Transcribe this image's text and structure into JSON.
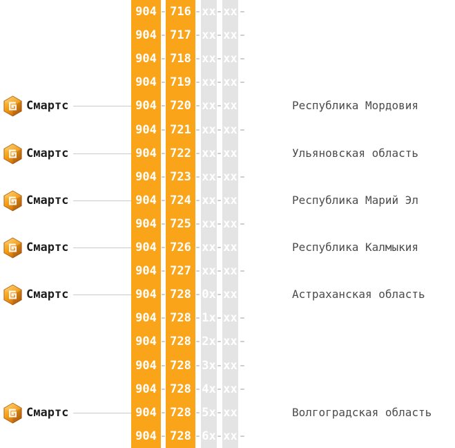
{
  "operator": {
    "name": "Смартс",
    "icon": "smarts-cube-logo"
  },
  "colors": {
    "orange": "#FAA41A",
    "grayblock": "#E4E4E4",
    "dash": "#CCCCCC",
    "line": "#C9C9C9",
    "blocktext": "#FFFFFF",
    "optext": "#1E1E1E",
    "regiontext": "#4B4B4B",
    "logo_light": "#FDCB5A",
    "logo_mid": "#F49D12",
    "logo_dark": "#BF5E12"
  },
  "rows": [
    {
      "parts": [
        "904",
        "716",
        "xx",
        "xx"
      ],
      "operator": "",
      "region": ""
    },
    {
      "parts": [
        "904",
        "717",
        "xx",
        "xx"
      ],
      "operator": "",
      "region": ""
    },
    {
      "parts": [
        "904",
        "718",
        "xx",
        "xx"
      ],
      "operator": "",
      "region": ""
    },
    {
      "parts": [
        "904",
        "719",
        "xx",
        "xx"
      ],
      "operator": "",
      "region": ""
    },
    {
      "parts": [
        "904",
        "720",
        "xx",
        "xx"
      ],
      "operator": "Смартс",
      "region": "Республика Мордовия"
    },
    {
      "parts": [
        "904",
        "721",
        "xx",
        "xx"
      ],
      "operator": "",
      "region": ""
    },
    {
      "parts": [
        "904",
        "722",
        "xx",
        "xx"
      ],
      "operator": "Смартс",
      "region": "Ульяновская область"
    },
    {
      "parts": [
        "904",
        "723",
        "xx",
        "xx"
      ],
      "operator": "",
      "region": ""
    },
    {
      "parts": [
        "904",
        "724",
        "xx",
        "xx"
      ],
      "operator": "Смартс",
      "region": "Республика Марий Эл"
    },
    {
      "parts": [
        "904",
        "725",
        "xx",
        "xx"
      ],
      "operator": "",
      "region": ""
    },
    {
      "parts": [
        "904",
        "726",
        "xx",
        "xx"
      ],
      "operator": "Смартс",
      "region": "Республика Калмыкия"
    },
    {
      "parts": [
        "904",
        "727",
        "xx",
        "xx"
      ],
      "operator": "",
      "region": ""
    },
    {
      "parts": [
        "904",
        "728",
        "0x",
        "xx"
      ],
      "operator": "Смартс",
      "region": "Астраханская область"
    },
    {
      "parts": [
        "904",
        "728",
        "1x",
        "xx"
      ],
      "operator": "",
      "region": ""
    },
    {
      "parts": [
        "904",
        "728",
        "2x",
        "xx"
      ],
      "operator": "",
      "region": ""
    },
    {
      "parts": [
        "904",
        "728",
        "3x",
        "xx"
      ],
      "operator": "",
      "region": ""
    },
    {
      "parts": [
        "904",
        "728",
        "4x",
        "xx"
      ],
      "operator": "",
      "region": ""
    },
    {
      "parts": [
        "904",
        "728",
        "5x",
        "xx"
      ],
      "operator": "Смартс",
      "region": "Волгоградская область"
    },
    {
      "parts": [
        "904",
        "728",
        "6x",
        "xx"
      ],
      "operator": "",
      "region": ""
    }
  ]
}
